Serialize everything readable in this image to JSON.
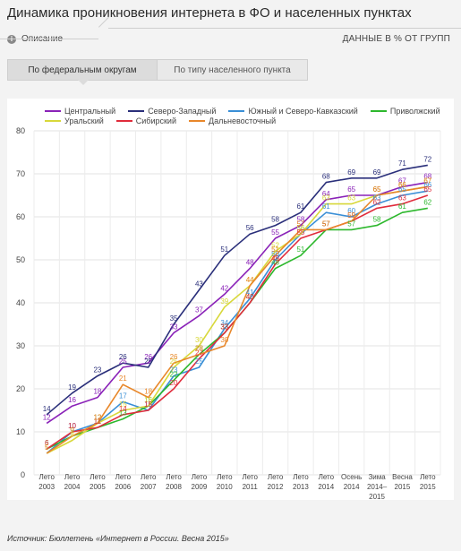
{
  "header": {
    "title": "Динамика проникновения интернета в ФО и населенных пунктах",
    "description_label": "Описание",
    "units": "ДАННЫЕ В % ОТ ГРУПП"
  },
  "tabs": [
    {
      "label": "По федеральным округам",
      "active": true
    },
    {
      "label": "По типу населенного пункта",
      "active": false
    }
  ],
  "source": "Источник: Бюллетень «Интернет в России. Весна 2015»",
  "chart_data": {
    "type": "line",
    "categories": [
      "Лето 2003",
      "Лето 2004",
      "Лето 2005",
      "Лето 2006",
      "Лето 2007",
      "Лето 2008",
      "Лето 2009",
      "Лето 2010",
      "Лето 2011",
      "Лето 2012",
      "Лето 2013",
      "Лето 2014",
      "Осень 2014",
      "Зима 2014–2015",
      "Весна 2015",
      "Лето 2015"
    ],
    "ylim": [
      0,
      80
    ],
    "yticks": [
      0,
      10,
      20,
      30,
      40,
      50,
      60,
      70,
      80
    ],
    "grid": true,
    "legend_position": "top",
    "series": [
      {
        "name": "Центральный",
        "color": "#8a22b8",
        "values": [
          12,
          16,
          18,
          25,
          26,
          33,
          37,
          42,
          48,
          55,
          58,
          64,
          65,
          65,
          67,
          68
        ]
      },
      {
        "name": "Северо-Западный",
        "color": "#2a2f7a",
        "values": [
          14,
          19,
          23,
          26,
          25,
          35,
          43,
          51,
          56,
          58,
          61,
          68,
          69,
          69,
          71,
          72
        ]
      },
      {
        "name": "Южный и Северо-Кавказский",
        "color": "#3a8fd6",
        "values": [
          5,
          10,
          12,
          17,
          15,
          23,
          25,
          34,
          41,
          50,
          56,
          61,
          60,
          63,
          65,
          66
        ]
      },
      {
        "name": "Приволжский",
        "color": "#2db82d",
        "values": [
          6,
          9,
          11,
          13,
          16,
          22,
          28,
          33,
          40,
          48,
          51,
          57,
          57,
          58,
          61,
          62
        ]
      },
      {
        "name": "Уральский",
        "color": "#d8d83a",
        "values": [
          5,
          8,
          12,
          15,
          16,
          25,
          30,
          39,
          44,
          52,
          56,
          63,
          63,
          65,
          66,
          67
        ]
      },
      {
        "name": "Сибирский",
        "color": "#e02c3c",
        "values": [
          6,
          10,
          11,
          14,
          15,
          20,
          27,
          33,
          40,
          49,
          55,
          57,
          59,
          62,
          63,
          65
        ]
      },
      {
        "name": "Дальневосточный",
        "color": "#e8872a",
        "values": [
          5,
          9,
          12,
          21,
          18,
          26,
          28,
          30,
          44,
          51,
          57,
          57,
          59,
          65,
          66,
          67
        ]
      }
    ]
  }
}
